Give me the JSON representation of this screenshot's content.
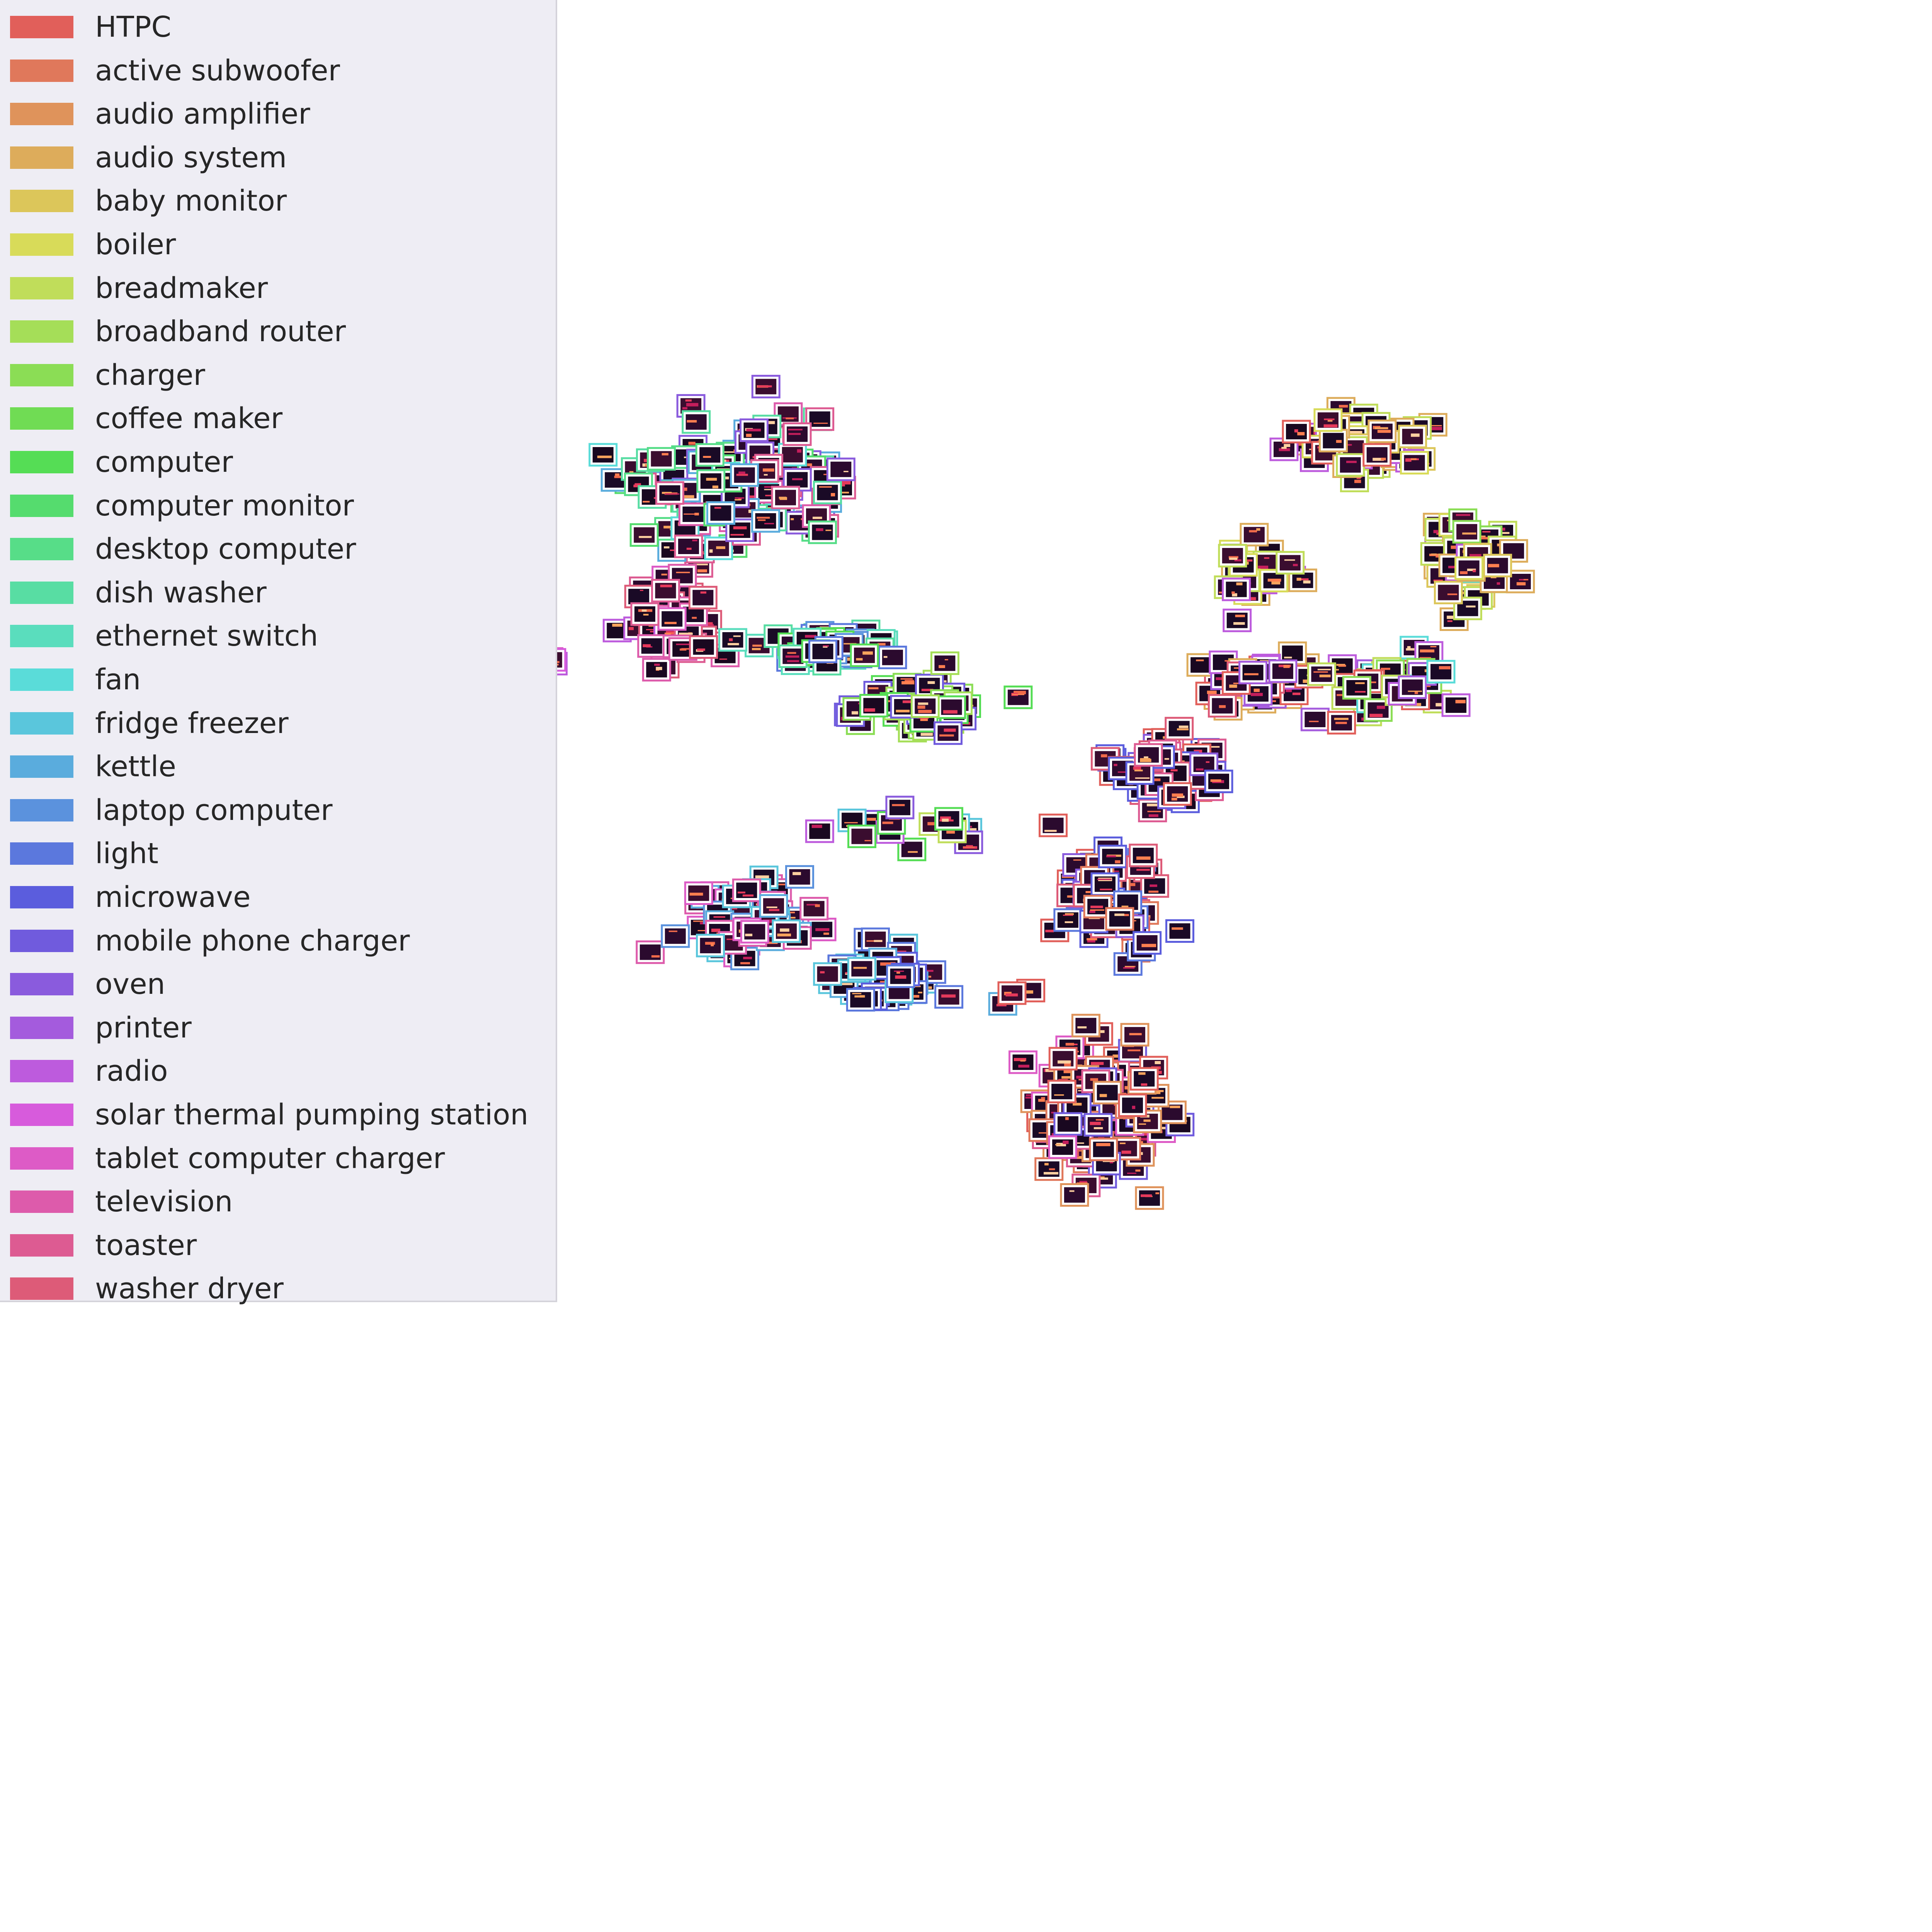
{
  "chart_data": {
    "type": "scatter",
    "title": "",
    "xlabel": "",
    "ylabel": "",
    "grid": false,
    "axes_visible": false,
    "legend_placement": "top-left",
    "marker": "thumbnail image with colored border",
    "legend": [
      {
        "label": "HTPC",
        "color": "#e15f5a"
      },
      {
        "label": "active subwoofer",
        "color": "#e0785b"
      },
      {
        "label": "audio amplifier",
        "color": "#df935b"
      },
      {
        "label": "audio system",
        "color": "#ddac5b"
      },
      {
        "label": "baby monitor",
        "color": "#dcc65a"
      },
      {
        "label": "boiler",
        "color": "#d8db59"
      },
      {
        "label": "breadmaker",
        "color": "#c0dd5a"
      },
      {
        "label": "broadband router",
        "color": "#a5de58"
      },
      {
        "label": "charger",
        "color": "#8bdd55"
      },
      {
        "label": "coffee maker",
        "color": "#70dc54"
      },
      {
        "label": "computer",
        "color": "#55dd55"
      },
      {
        "label": "computer monitor",
        "color": "#55dc6e"
      },
      {
        "label": "desktop computer",
        "color": "#57dd88"
      },
      {
        "label": "dish washer",
        "color": "#58dda3"
      },
      {
        "label": "ethernet switch",
        "color": "#5addbd"
      },
      {
        "label": "fan",
        "color": "#5adcd9"
      },
      {
        "label": "fridge freezer",
        "color": "#5ac6dc"
      },
      {
        "label": "kettle",
        "color": "#5aacdd"
      },
      {
        "label": "laptop computer",
        "color": "#5b92dd"
      },
      {
        "label": "light",
        "color": "#5b78dd"
      },
      {
        "label": "microwave",
        "color": "#5b5ddd"
      },
      {
        "label": "mobile phone charger",
        "color": "#705bdd"
      },
      {
        "label": "oven",
        "color": "#8a5bdd"
      },
      {
        "label": "printer",
        "color": "#a45bdd"
      },
      {
        "label": "radio",
        "color": "#bd5bdd"
      },
      {
        "label": "solar thermal pumping station",
        "color": "#d75bdc"
      },
      {
        "label": "tablet computer charger",
        "color": "#dd5bc6"
      },
      {
        "label": "television",
        "color": "#dd5bab"
      },
      {
        "label": "toaster",
        "color": "#dd5b92"
      },
      {
        "label": "washer dryer",
        "color": "#dd5b78"
      }
    ],
    "clusters": [
      {
        "x": 1.8,
        "y": 5.6,
        "spread": [
          0.95,
          1.05
        ],
        "n": 140,
        "colors": [
          "desktop computer",
          "dish washer",
          "computer monitor",
          "fan",
          "television",
          "toaster",
          "oven",
          "kettle"
        ]
      },
      {
        "x": 1.2,
        "y": 3.4,
        "spread": [
          0.4,
          0.6
        ],
        "n": 40,
        "colors": [
          "toaster",
          "washer dryer",
          "television",
          "tablet computer charger",
          "radio"
        ]
      },
      {
        "x": 2.5,
        "y": 3.0,
        "spread": [
          0.6,
          0.3
        ],
        "n": 55,
        "colors": [
          "dish washer",
          "ethernet switch",
          "computer",
          "light",
          "laptop computer"
        ]
      },
      {
        "x": 3.3,
        "y": 2.0,
        "spread": [
          0.5,
          0.45
        ],
        "n": 45,
        "colors": [
          "computer",
          "charger",
          "broadband router",
          "mobile phone charger"
        ]
      },
      {
        "x": 0.0,
        "y": 2.8,
        "spread": [
          0.15,
          0.12
        ],
        "n": 6,
        "colors": [
          "solar thermal pumping station",
          "radio",
          "tablet computer charger"
        ]
      },
      {
        "x": 1.9,
        "y": -1.5,
        "spread": [
          0.55,
          0.6
        ],
        "n": 80,
        "colors": [
          "television",
          "tablet computer charger",
          "laptop computer",
          "kettle",
          "fridge freezer"
        ]
      },
      {
        "x": 3.0,
        "y": -2.4,
        "spread": [
          0.55,
          0.5
        ],
        "n": 55,
        "colors": [
          "light",
          "microwave",
          "fridge freezer",
          "kettle"
        ]
      },
      {
        "x": 5.1,
        "y": -1.2,
        "spread": [
          0.45,
          0.8
        ],
        "n": 70,
        "colors": [
          "washer dryer",
          "HTPC",
          "active subwoofer",
          "oven",
          "microwave",
          "light"
        ]
      },
      {
        "x": 5.0,
        "y": -4.7,
        "spread": [
          0.55,
          1.2
        ],
        "n": 110,
        "colors": [
          "active subwoofer",
          "HTPC",
          "audio amplifier",
          "tablet computer charger",
          "toaster",
          "mobile phone charger"
        ]
      },
      {
        "x": 5.6,
        "y": 1.0,
        "spread": [
          0.45,
          0.5
        ],
        "n": 70,
        "colors": [
          "oven",
          "mobile phone charger",
          "microwave",
          "washer dryer",
          "toaster",
          "HTPC"
        ]
      },
      {
        "x": 6.4,
        "y": 2.4,
        "spread": [
          0.55,
          0.4
        ],
        "n": 45,
        "colors": [
          "HTPC",
          "washer dryer",
          "audio system",
          "printer",
          "radio"
        ]
      },
      {
        "x": 7.3,
        "y": 6.3,
        "spread": [
          0.55,
          0.45
        ],
        "n": 55,
        "colors": [
          "breadmaker",
          "audio system",
          "radio",
          "HTPC",
          "baby monitor",
          "boiler"
        ]
      },
      {
        "x": 8.3,
        "y": 4.5,
        "spread": [
          0.35,
          0.9
        ],
        "n": 50,
        "colors": [
          "breadmaker",
          "baby monitor",
          "boiler",
          "radio",
          "charger",
          "audio system",
          "fan"
        ]
      },
      {
        "x": 6.4,
        "y": 4.2,
        "spread": [
          0.35,
          0.5
        ],
        "n": 30,
        "colors": [
          "breadmaker",
          "boiler",
          "radio",
          "audio system"
        ]
      },
      {
        "x": 7.6,
        "y": 2.3,
        "spread": [
          0.5,
          0.6
        ],
        "n": 40,
        "colors": [
          "radio",
          "HTPC",
          "breadmaker",
          "printer",
          "charger",
          "fan"
        ]
      },
      {
        "x": 3.5,
        "y": 0.0,
        "spread": [
          0.9,
          0.35
        ],
        "n": 14,
        "colors": [
          "fridge freezer",
          "breadmaker",
          "radio",
          "oven",
          "computer"
        ]
      },
      {
        "x": 4.2,
        "y": -2.7,
        "spread": [
          0.2,
          0.15
        ],
        "n": 3,
        "colors": [
          "kettle",
          "HTPC"
        ]
      }
    ],
    "xlim": [
      -0.6,
      9.0
    ],
    "ylim": [
      -10.5,
      9.0
    ],
    "seed": 12
  }
}
